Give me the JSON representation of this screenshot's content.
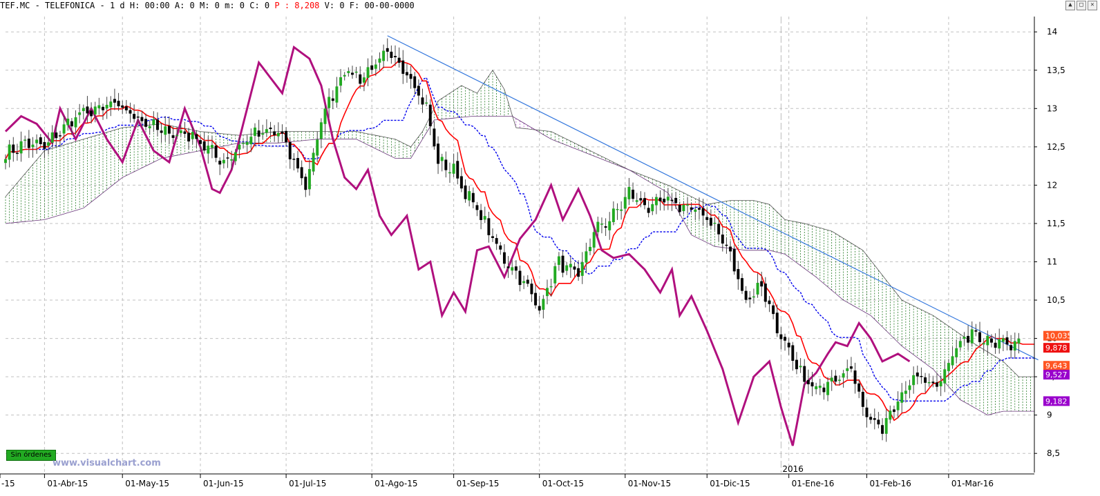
{
  "header": {
    "symbol": "TEF.MC - TELEFONICA -",
    "meta": "1 d H: 00:00 A: 0 M: 0 m: 0 C: 0",
    "price_label": "P : 8,208",
    "tail": "V: 0 F: 00-00-0000"
  },
  "window_buttons": [
    "▲",
    "□",
    "✕"
  ],
  "watermark": "www.visualchart.com",
  "status_button": "Sin órdenes",
  "colors": {
    "bull": "#22aa22",
    "bear": "#000000",
    "tenkan": "#ff0000",
    "kijun": "#0000ee",
    "chikou": "#b0107e",
    "cloud_bull": "#006600",
    "cloud_bear": "#aa33cc",
    "trendline": "#3377dd",
    "grid": "#c0c0c0"
  },
  "chart_data": {
    "type": "candlestick",
    "ylim": [
      8.25,
      14.2
    ],
    "y_ticks": [
      8.5,
      9,
      9.5,
      10,
      10.5,
      11,
      11.5,
      12,
      12.5,
      13,
      13.5,
      14
    ],
    "y_tick_labels": [
      "8,5",
      "9",
      "9,5",
      "10",
      "10,5",
      "11",
      "11,5",
      "12",
      "12,5",
      "13",
      "13,5",
      "14"
    ],
    "x_labels": [
      {
        "label": "-15",
        "i": -4
      },
      {
        "label": "01-Abr-15",
        "i": 10
      },
      {
        "label": "01-May-15",
        "i": 30
      },
      {
        "label": "01-Jun-15",
        "i": 50
      },
      {
        "label": "01-Jul-15",
        "i": 72
      },
      {
        "label": "01-Ago-15",
        "i": 94
      },
      {
        "label": "01-Sep-15",
        "i": 115
      },
      {
        "label": "01-Oct-15",
        "i": 137
      },
      {
        "label": "01-Nov-15",
        "i": 159
      },
      {
        "label": "01-Dic-15",
        "i": 180
      },
      {
        "label": "01-Ene-16",
        "i": 201
      },
      {
        "label": "01-Feb-16",
        "i": 221
      },
      {
        "label": "01-Mar-16",
        "i": 242
      }
    ],
    "year_marker": {
      "label": "2016",
      "i": 199
    },
    "n_bars": 265,
    "close_anchors": [
      [
        0,
        12.4
      ],
      [
        5,
        12.55
      ],
      [
        10,
        12.5
      ],
      [
        18,
        12.9
      ],
      [
        28,
        13.05
      ],
      [
        35,
        12.85
      ],
      [
        40,
        12.7
      ],
      [
        48,
        12.65
      ],
      [
        56,
        12.3
      ],
      [
        63,
        12.65
      ],
      [
        70,
        12.7
      ],
      [
        77,
        12.0
      ],
      [
        82,
        13.0
      ],
      [
        87,
        13.5
      ],
      [
        91,
        13.4
      ],
      [
        98,
        13.7
      ],
      [
        103,
        13.5
      ],
      [
        108,
        13.0
      ],
      [
        111,
        12.3
      ],
      [
        115,
        12.2
      ],
      [
        118,
        11.9
      ],
      [
        122,
        11.6
      ],
      [
        127,
        11.1
      ],
      [
        132,
        10.8
      ],
      [
        137,
        10.4
      ],
      [
        142,
        11.0
      ],
      [
        147,
        10.8
      ],
      [
        151,
        11.4
      ],
      [
        156,
        11.6
      ],
      [
        160,
        11.9
      ],
      [
        165,
        11.7
      ],
      [
        170,
        11.8
      ],
      [
        175,
        11.7
      ],
      [
        180,
        11.6
      ],
      [
        185,
        11.2
      ],
      [
        190,
        10.5
      ],
      [
        194,
        10.7
      ],
      [
        199,
        10.0
      ],
      [
        203,
        9.6
      ],
      [
        208,
        9.3
      ],
      [
        212,
        9.5
      ],
      [
        217,
        9.6
      ],
      [
        221,
        9.0
      ],
      [
        225,
        8.8
      ],
      [
        230,
        9.3
      ],
      [
        234,
        9.5
      ],
      [
        239,
        9.4
      ],
      [
        243,
        9.8
      ],
      [
        248,
        10.1
      ],
      [
        252,
        10.0
      ],
      [
        257,
        9.9
      ],
      [
        260,
        9.9
      ]
    ],
    "chikou_anchors": [
      [
        0,
        12.7
      ],
      [
        4,
        12.9
      ],
      [
        8,
        12.8
      ],
      [
        12,
        12.55
      ],
      [
        14,
        13.0
      ],
      [
        18,
        12.6
      ],
      [
        22,
        13.0
      ],
      [
        26,
        12.6
      ],
      [
        30,
        12.3
      ],
      [
        34,
        12.85
      ],
      [
        38,
        12.45
      ],
      [
        42,
        12.3
      ],
      [
        46,
        13.0
      ],
      [
        50,
        12.5
      ],
      [
        53,
        11.95
      ],
      [
        55,
        11.9
      ],
      [
        58,
        12.2
      ],
      [
        62,
        13.0
      ],
      [
        65,
        13.6
      ],
      [
        68,
        13.4
      ],
      [
        71,
        13.2
      ],
      [
        74,
        13.8
      ],
      [
        78,
        13.65
      ],
      [
        81,
        13.3
      ],
      [
        84,
        12.6
      ],
      [
        87,
        12.1
      ],
      [
        90,
        11.95
      ],
      [
        93,
        12.2
      ],
      [
        96,
        11.6
      ],
      [
        99,
        11.35
      ],
      [
        103,
        11.6
      ],
      [
        106,
        10.9
      ],
      [
        109,
        11.0
      ],
      [
        112,
        10.3
      ],
      [
        115,
        10.6
      ],
      [
        118,
        10.35
      ],
      [
        121,
        11.15
      ],
      [
        124,
        11.2
      ],
      [
        128,
        10.8
      ],
      [
        132,
        11.3
      ],
      [
        136,
        11.55
      ],
      [
        140,
        12.0
      ],
      [
        143,
        11.55
      ],
      [
        147,
        11.95
      ],
      [
        150,
        11.6
      ],
      [
        153,
        11.15
      ],
      [
        156,
        11.05
      ],
      [
        160,
        11.1
      ],
      [
        164,
        10.9
      ],
      [
        168,
        10.6
      ],
      [
        171,
        10.9
      ],
      [
        173,
        10.3
      ],
      [
        176,
        10.55
      ],
      [
        180,
        10.1
      ],
      [
        184,
        9.6
      ],
      [
        188,
        8.9
      ],
      [
        192,
        9.5
      ],
      [
        196,
        9.7
      ],
      [
        199,
        9.1
      ],
      [
        202,
        8.6
      ],
      [
        205,
        9.4
      ],
      [
        208,
        9.55
      ],
      [
        211,
        9.8
      ],
      [
        213,
        9.95
      ],
      [
        216,
        9.9
      ],
      [
        219,
        10.2
      ],
      [
        222,
        10.0
      ],
      [
        225,
        9.7
      ],
      [
        229,
        9.8
      ],
      [
        232,
        9.7
      ]
    ],
    "cloud_upper_anchors": [
      [
        0,
        11.85
      ],
      [
        10,
        12.45
      ],
      [
        20,
        12.6
      ],
      [
        30,
        12.75
      ],
      [
        40,
        12.8
      ],
      [
        50,
        12.7
      ],
      [
        60,
        12.65
      ],
      [
        70,
        12.7
      ],
      [
        80,
        12.7
      ],
      [
        90,
        12.7
      ],
      [
        100,
        12.6
      ],
      [
        104,
        12.5
      ],
      [
        107,
        12.7
      ],
      [
        111,
        13.1
      ],
      [
        117,
        13.3
      ],
      [
        121,
        13.2
      ],
      [
        125,
        13.5
      ],
      [
        128,
        13.25
      ],
      [
        131,
        12.75
      ],
      [
        140,
        12.7
      ],
      [
        150,
        12.45
      ],
      [
        160,
        12.2
      ],
      [
        170,
        12.0
      ],
      [
        180,
        11.75
      ],
      [
        186,
        11.8
      ],
      [
        192,
        11.8
      ],
      [
        196,
        11.75
      ],
      [
        200,
        11.55
      ],
      [
        205,
        11.5
      ],
      [
        212,
        11.4
      ],
      [
        220,
        11.15
      ],
      [
        230,
        10.5
      ],
      [
        238,
        10.3
      ],
      [
        248,
        9.95
      ],
      [
        256,
        9.7
      ],
      [
        260,
        9.5
      ]
    ],
    "cloud_lower_anchors": [
      [
        0,
        11.5
      ],
      [
        10,
        11.55
      ],
      [
        20,
        11.7
      ],
      [
        30,
        12.1
      ],
      [
        40,
        12.35
      ],
      [
        50,
        12.45
      ],
      [
        60,
        12.55
      ],
      [
        70,
        12.55
      ],
      [
        80,
        12.6
      ],
      [
        90,
        12.6
      ],
      [
        100,
        12.35
      ],
      [
        104,
        12.35
      ],
      [
        110,
        12.85
      ],
      [
        120,
        12.9
      ],
      [
        130,
        12.9
      ],
      [
        140,
        12.6
      ],
      [
        150,
        12.4
      ],
      [
        160,
        12.2
      ],
      [
        170,
        11.9
      ],
      [
        176,
        11.35
      ],
      [
        182,
        11.2
      ],
      [
        190,
        11.15
      ],
      [
        196,
        11.15
      ],
      [
        200,
        11.1
      ],
      [
        208,
        10.8
      ],
      [
        215,
        10.5
      ],
      [
        222,
        10.3
      ],
      [
        230,
        9.9
      ],
      [
        238,
        9.6
      ],
      [
        245,
        9.2
      ],
      [
        252,
        9.0
      ],
      [
        256,
        9.05
      ],
      [
        260,
        9.05
      ]
    ],
    "trendline": {
      "start": [
        98,
        13.95
      ],
      "end": [
        265,
        9.72
      ]
    },
    "price_badges": [
      {
        "label": "10,035",
        "value": 10.035,
        "color": "#ff5522"
      },
      {
        "label": "9,878",
        "value": 9.878,
        "color": "#ee1111"
      },
      {
        "label": "9,643",
        "value": 9.643,
        "color": "#ff5522"
      },
      {
        "label": "9,527",
        "value": 9.527,
        "color": "#9900cc"
      },
      {
        "label": "9,182",
        "value": 9.182,
        "color": "#9900cc"
      }
    ]
  }
}
